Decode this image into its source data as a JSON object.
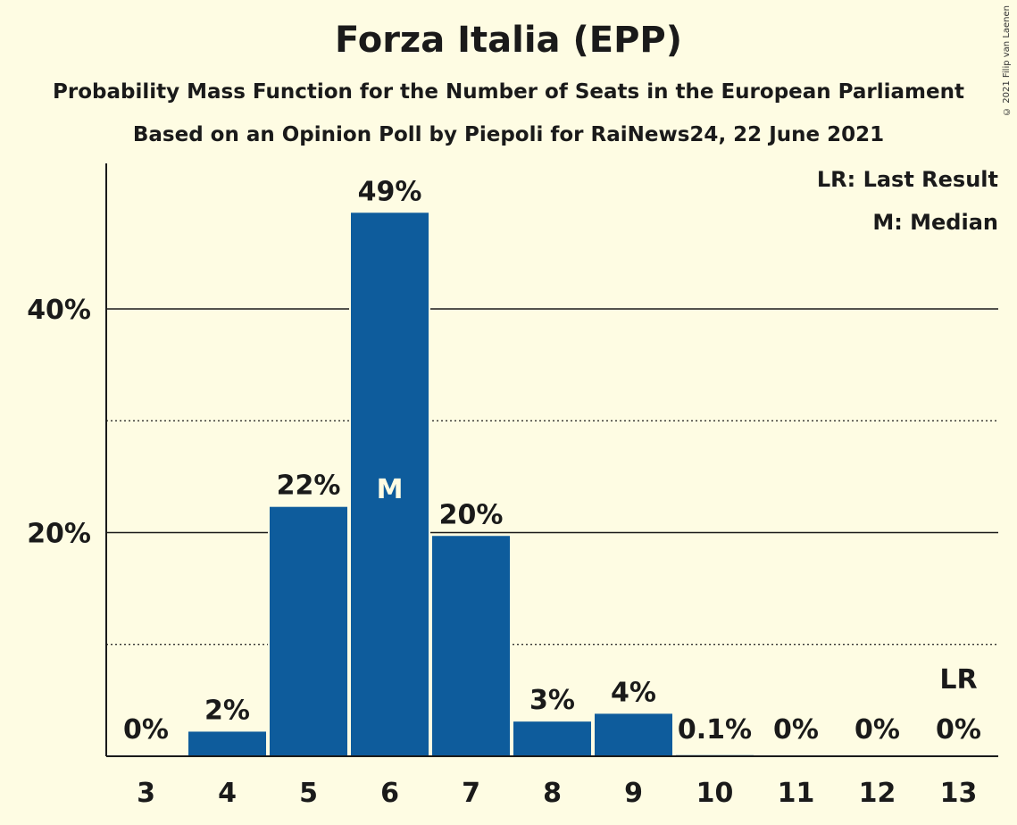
{
  "title": "Forza Italia (EPP)",
  "subtitle": "Probability Mass Function for the Number of Seats in the European Parliament",
  "subtitle2": "Based on an Opinion Poll by Piepoli for RaiNews24, 22 June 2021",
  "copyright": "© 2021 Filip van Laenen",
  "legend": {
    "last_result": "LR: Last Result",
    "median": "M: Median"
  },
  "colors": {
    "background": "#FEFCE3",
    "bar": "#0E5C9C",
    "text": "#1a1a1a"
  },
  "chart_data": {
    "type": "bar",
    "categories": [
      "3",
      "4",
      "5",
      "6",
      "7",
      "8",
      "9",
      "10",
      "11",
      "12",
      "13"
    ],
    "values": [
      0,
      2.2,
      22.3,
      48.6,
      19.7,
      3.1,
      3.8,
      0.1,
      0,
      0,
      0
    ],
    "value_labels": [
      "0%",
      "2%",
      "22%",
      "49%",
      "20%",
      "3%",
      "4%",
      "0.1%",
      "0%",
      "0%",
      "0%"
    ],
    "ylim": [
      0,
      52.5
    ],
    "yticks": [
      {
        "value": 20,
        "label": "20%"
      },
      {
        "value": 40,
        "label": "40%"
      }
    ],
    "dotted_gridlines": [
      10,
      30
    ],
    "median": {
      "category": "6",
      "label": "M"
    },
    "last_result": {
      "category": "13",
      "label": "LR"
    },
    "legend_position": "top-right"
  }
}
